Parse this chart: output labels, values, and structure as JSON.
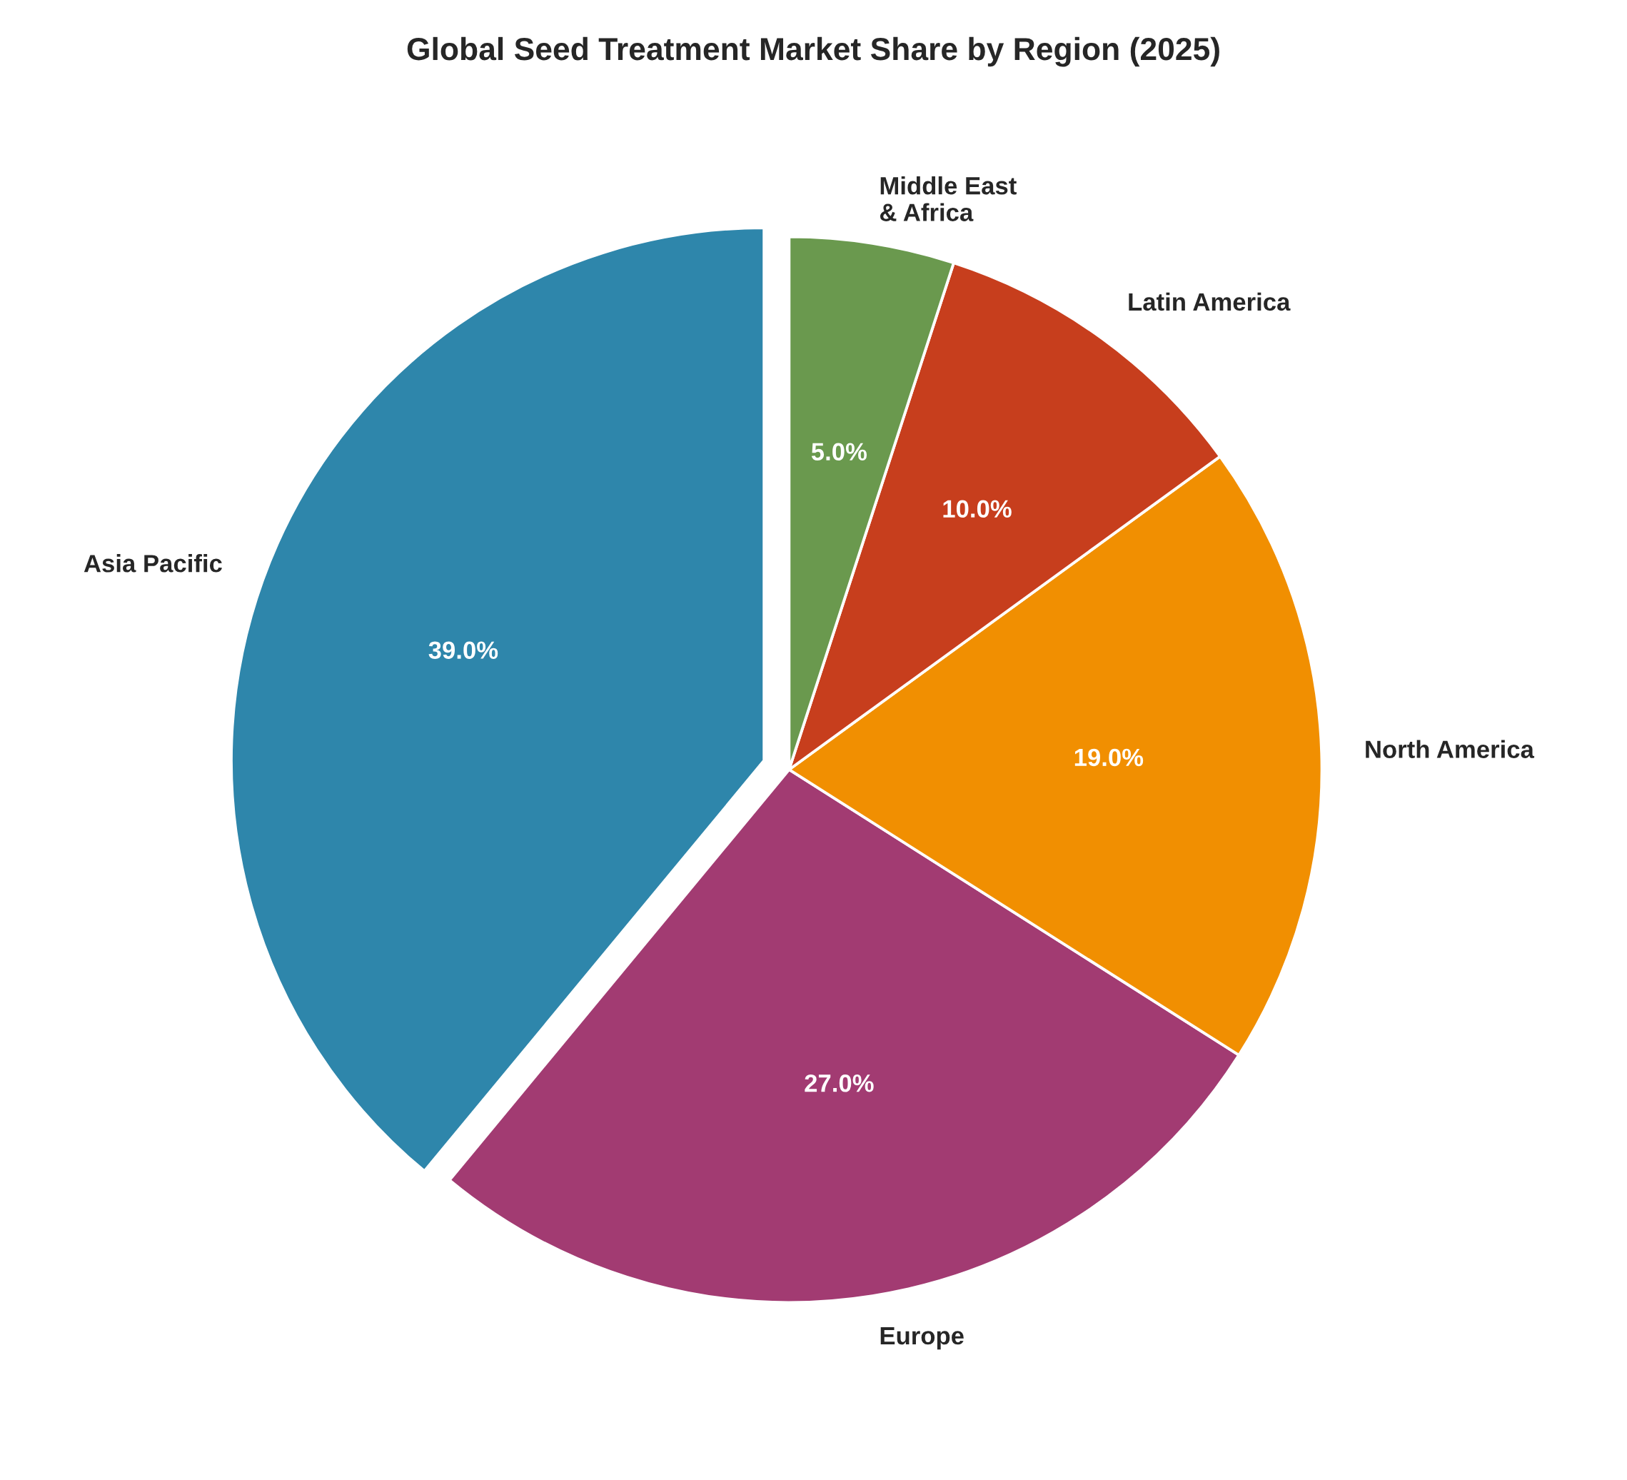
{
  "chart_data": {
    "type": "pie",
    "title": "Global Seed Treatment Market Share by Region (2025)",
    "categories": [
      "Asia Pacific",
      "Europe",
      "North America",
      "Latin America",
      "Middle East\n& Africa"
    ],
    "values": [
      39,
      27,
      19,
      10,
      5
    ],
    "colors": [
      "#2e86ab",
      "#a23b72",
      "#f18f01",
      "#c73e1d",
      "#6a994e"
    ],
    "value_labels": [
      "39.0%",
      "27.0%",
      "19.0%",
      "10.0%",
      "5.0%"
    ]
  }
}
